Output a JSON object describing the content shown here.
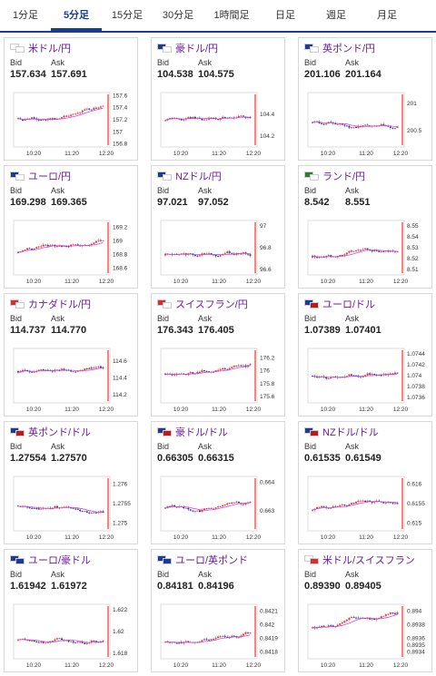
{
  "tabs": [
    "1分足",
    "5分足",
    "15分足",
    "30分足",
    "1時間足",
    "日足",
    "週足",
    "月足"
  ],
  "active_tab": 1,
  "labels": {
    "bid": "Bid",
    "ask": "Ask"
  },
  "colors": {
    "up": "#e53935",
    "down": "#283593",
    "ma": "#d24ad8",
    "last": "#ff0000",
    "tab_accent": "#1a3e8c",
    "pair_text": "#6a1b9a"
  },
  "pairs": [
    {
      "name": "米ドル/円",
      "bid": "157.634",
      "ask": "157.691",
      "flags": [
        "#ffffff",
        "#ffffff"
      ],
      "chart_data": {
        "type": "candlestick",
        "xticks": [
          "10:20",
          "11:20",
          "12:20"
        ],
        "yticks": [
          "157.6",
          "157.4",
          "157.2",
          "157",
          "156.8"
        ],
        "ylim": [
          156.75,
          157.65
        ]
      }
    },
    {
      "name": "豪ドル/円",
      "bid": "104.538",
      "ask": "104.575",
      "flags": [
        "#1f3a93",
        "#ffffff"
      ],
      "chart_data": {
        "type": "candlestick",
        "xticks": [
          "10:20",
          "11:20",
          "12:20"
        ],
        "yticks": [
          "104.4",
          "104.2"
        ],
        "ylim": [
          104.1,
          104.6
        ]
      }
    },
    {
      "name": "英ポンド/円",
      "bid": "201.106",
      "ask": "201.164",
      "flags": [
        "#1f3a93",
        "#ffffff"
      ],
      "chart_data": {
        "type": "candlestick",
        "xticks": [
          "10:20",
          "11:20",
          "12:20"
        ],
        "yticks": [
          "201",
          "200.5"
        ],
        "ylim": [
          200.2,
          201.2
        ]
      }
    },
    {
      "name": "ユーロ/円",
      "bid": "169.298",
      "ask": "169.365",
      "flags": [
        "#1f3a93",
        "#ffffff"
      ],
      "chart_data": {
        "type": "candlestick",
        "xticks": [
          "10:20",
          "11:20",
          "12:20"
        ],
        "yticks": [
          "169.2",
          "169",
          "168.8",
          "168.6"
        ],
        "ylim": [
          168.5,
          169.3
        ]
      }
    },
    {
      "name": "NZドル/円",
      "bid": "97.021",
      "ask": "97.052",
      "flags": [
        "#1f3a93",
        "#ffffff"
      ],
      "chart_data": {
        "type": "candlestick",
        "xticks": [
          "10:20",
          "11:20",
          "12:20"
        ],
        "yticks": [
          "97",
          "96.8",
          "96.6"
        ],
        "ylim": [
          96.55,
          97.05
        ]
      }
    },
    {
      "name": "ランド/円",
      "bid": "8.542",
      "ask": "8.551",
      "flags": [
        "#2e7d32",
        "#ffffff"
      ],
      "chart_data": {
        "type": "candlestick",
        "xticks": [
          "10:20",
          "11:20",
          "12:20"
        ],
        "yticks": [
          "8.55",
          "8.54",
          "8.53",
          "8.52",
          "8.51"
        ],
        "ylim": [
          8.505,
          8.555
        ]
      }
    },
    {
      "name": "カナダドル/円",
      "bid": "114.737",
      "ask": "114.770",
      "flags": [
        "#d32f2f",
        "#ffffff"
      ],
      "chart_data": {
        "type": "candlestick",
        "xticks": [
          "10:20",
          "11:20",
          "12:20"
        ],
        "yticks": [
          "114.6",
          "114.4",
          "114.2"
        ],
        "ylim": [
          114.1,
          114.75
        ]
      }
    },
    {
      "name": "スイスフラン/円",
      "bid": "176.343",
      "ask": "176.405",
      "flags": [
        "#d32f2f",
        "#ffffff"
      ],
      "chart_data": {
        "type": "candlestick",
        "xticks": [
          "10:20",
          "11:20",
          "12:20"
        ],
        "yticks": [
          "176.2",
          "176",
          "175.8",
          "175.6"
        ],
        "ylim": [
          175.5,
          176.35
        ]
      }
    },
    {
      "name": "ユーロ/ドル",
      "bid": "1.07389",
      "ask": "1.07401",
      "flags": [
        "#1f3a93",
        "#b71c1c"
      ],
      "chart_data": {
        "type": "candlestick",
        "xticks": [
          "10:20",
          "11:20",
          "12:20"
        ],
        "yticks": [
          "1.0744",
          "1.0742",
          "1.074",
          "1.0738",
          "1.0736"
        ],
        "ylim": [
          1.0735,
          1.0745
        ]
      }
    },
    {
      "name": "英ポンド/ドル",
      "bid": "1.27554",
      "ask": "1.27570",
      "flags": [
        "#1f3a93",
        "#b71c1c"
      ],
      "chart_data": {
        "type": "candlestick",
        "xticks": [
          "10:20",
          "11:20",
          "12:20"
        ],
        "yticks": [
          "1.276",
          "1.2755",
          "1.275"
        ],
        "ylim": [
          1.2748,
          1.2762
        ]
      }
    },
    {
      "name": "豪ドル/ドル",
      "bid": "0.66305",
      "ask": "0.66315",
      "flags": [
        "#1f3a93",
        "#b71c1c"
      ],
      "chart_data": {
        "type": "candlestick",
        "xticks": [
          "10:20",
          "11:20",
          "12:20"
        ],
        "yticks": [
          "0.664",
          "0.663"
        ],
        "ylim": [
          0.6623,
          0.6642
        ]
      }
    },
    {
      "name": "NZドル/ドル",
      "bid": "0.61535",
      "ask": "0.61549",
      "flags": [
        "#1f3a93",
        "#b71c1c"
      ],
      "chart_data": {
        "type": "candlestick",
        "xticks": [
          "10:20",
          "11:20",
          "12:20"
        ],
        "yticks": [
          "0.616",
          "0.6155",
          "0.615"
        ],
        "ylim": [
          0.6148,
          0.6162
        ]
      }
    },
    {
      "name": "ユーロ/豪ドル",
      "bid": "1.61942",
      "ask": "1.61972",
      "flags": [
        "#1f3a93",
        "#1f3a93"
      ],
      "chart_data": {
        "type": "candlestick",
        "xticks": [
          "10:20",
          "11:20",
          "12:20"
        ],
        "yticks": [
          "1.622",
          "1.62",
          "1.618"
        ],
        "ylim": [
          1.6175,
          1.6225
        ]
      }
    },
    {
      "name": "ユーロ/英ポンド",
      "bid": "0.84181",
      "ask": "0.84196",
      "flags": [
        "#1f3a93",
        "#1f3a93"
      ],
      "chart_data": {
        "type": "candlestick",
        "xticks": [
          "10:20",
          "11:20",
          "12:20"
        ],
        "yticks": [
          "0.8421",
          "0.842",
          "0.8419",
          "0.8418"
        ],
        "ylim": [
          0.84175,
          0.84215
        ]
      }
    },
    {
      "name": "米ドル/スイスフラン",
      "bid": "0.89390",
      "ask": "0.89405",
      "flags": [
        "#ffffff",
        "#d32f2f"
      ],
      "chart_data": {
        "type": "candlestick",
        "xticks": [
          "10:20",
          "11:20",
          "12:20"
        ],
        "yticks": [
          "0.894",
          "0.8938",
          "0.8936",
          "0.8935",
          "0.8934"
        ],
        "ylim": [
          0.8933,
          0.8941
        ]
      }
    }
  ]
}
